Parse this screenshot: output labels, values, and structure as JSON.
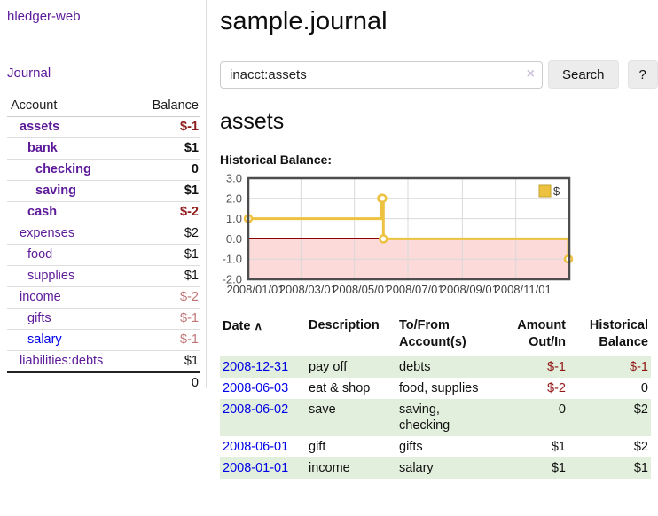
{
  "app": {
    "title": "hledger-web",
    "nav_journal": "Journal"
  },
  "sidebar": {
    "col_account": "Account",
    "col_balance": "Balance",
    "accounts": [
      {
        "name": "assets",
        "indent": 0,
        "bold": true,
        "balance": "$-1",
        "neg": "dark"
      },
      {
        "name": "bank",
        "indent": 1,
        "bold": true,
        "balance": "$1"
      },
      {
        "name": "checking",
        "indent": 2,
        "bold": true,
        "balance": "0"
      },
      {
        "name": "saving",
        "indent": 2,
        "bold": true,
        "balance": "$1"
      },
      {
        "name": "cash",
        "indent": 1,
        "bold": true,
        "balance": "$-2",
        "neg": "dark"
      },
      {
        "name": "expenses",
        "indent": 0,
        "balance": "$2"
      },
      {
        "name": "food",
        "indent": 1,
        "balance": "$1"
      },
      {
        "name": "supplies",
        "indent": 1,
        "balance": "$1"
      },
      {
        "name": "income",
        "indent": 0,
        "balance": "$-2",
        "neg": "light"
      },
      {
        "name": "gifts",
        "indent": 1,
        "balance": "$-1",
        "neg": "light"
      },
      {
        "name": "salary",
        "indent": 1,
        "balance": "$-1",
        "neg": "light",
        "unvisited": true
      },
      {
        "name": "liabilities:debts",
        "indent": 0,
        "balance": "$1"
      }
    ],
    "total": "0"
  },
  "main": {
    "title": "sample.journal",
    "search": {
      "value": "inacct:assets",
      "clear_icon": "×",
      "button_label": "Search",
      "help_label": "?"
    },
    "account_heading": "assets",
    "chart_label": "Historical Balance:"
  },
  "chart_data": {
    "type": "line",
    "step": true,
    "title": "Historical Balance of assets",
    "series": [
      {
        "name": "$",
        "color": "#edc240",
        "points": [
          [
            "2008-01-01",
            1
          ],
          [
            "2008-06-01",
            2
          ],
          [
            "2008-06-02",
            2
          ],
          [
            "2008-06-03",
            0
          ],
          [
            "2008-12-31",
            -1
          ]
        ]
      }
    ],
    "ylim": [
      -2,
      3
    ],
    "yticks": [
      3.0,
      2.0,
      1.0,
      0.0,
      -1.0,
      -2.0
    ],
    "xrange": [
      "2008-01-01",
      "2009-01-01"
    ],
    "xticks": [
      "2008/01/01",
      "2008/03/01",
      "2008/05/01",
      "2008/07/01",
      "2008/09/01",
      "2008/11/01"
    ],
    "grid": true,
    "legend_position": "top-right",
    "legend": [
      {
        "label": "$",
        "color": "#edc240"
      }
    ],
    "negative_region_fill": "#fcdada",
    "zero_line_color": "#8b0000",
    "border_color": "#4d4d4d"
  },
  "register": {
    "headers": {
      "date": "Date",
      "sort_icon": "∧",
      "description": "Description",
      "accounts": "To/From Account(s)",
      "amount": "Amount Out/In",
      "balance": "Historical Balance"
    },
    "rows": [
      {
        "date": "2008-12-31",
        "description": "pay off",
        "accounts": "debts",
        "amount": "$-1",
        "balance": "$-1"
      },
      {
        "date": "2008-06-03",
        "description": "eat & shop",
        "accounts": "food, supplies",
        "amount": "$-2",
        "balance": "0"
      },
      {
        "date": "2008-06-02",
        "description": "save",
        "accounts": "saving, checking",
        "amount": "0",
        "balance": "$2"
      },
      {
        "date": "2008-06-01",
        "description": "gift",
        "accounts": "gifts",
        "amount": "$1",
        "balance": "$2"
      },
      {
        "date": "2008-01-01",
        "description": "income",
        "accounts": "salary",
        "amount": "$1",
        "balance": "$1"
      }
    ]
  },
  "colors": {
    "link_purple": "#5c1a99",
    "link_blue": "#0000e6",
    "negative_dark": "#8f1b1b",
    "negative_light": "#c17676",
    "row_stripe_green": "#e1efdc",
    "chart_line_gold": "#edc240"
  }
}
